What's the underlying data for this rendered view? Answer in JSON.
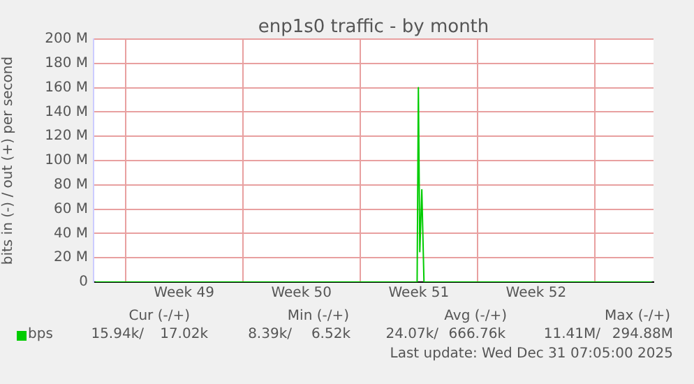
{
  "chart_data": {
    "type": "line",
    "title": "enp1s0 traffic - by month",
    "ylabel": "bits in (-) / out (+) per second",
    "xlim": [
      "2025-11-29T02:24",
      "2026-01-01T12:00"
    ],
    "xticks": [
      {
        "value": "2025-12-01",
        "label": null
      },
      {
        "value": "2025-12-04T12:00",
        "label": "Week 49"
      },
      {
        "value": "2025-12-08",
        "label": null
      },
      {
        "value": "2025-12-11T12:00",
        "label": "Week 50"
      },
      {
        "value": "2025-12-15",
        "label": null
      },
      {
        "value": "2025-12-18T12:00",
        "label": "Week 51"
      },
      {
        "value": "2025-12-22",
        "label": null
      },
      {
        "value": "2025-12-25T12:00",
        "label": "Week 52"
      },
      {
        "value": "2025-12-29",
        "label": null
      }
    ],
    "ylim": [
      0,
      200
    ],
    "yticks": [
      {
        "value": 0,
        "label": "0"
      },
      {
        "value": 20,
        "label": "20 M"
      },
      {
        "value": 40,
        "label": "40 M"
      },
      {
        "value": 60,
        "label": "60 M"
      },
      {
        "value": 80,
        "label": "80 M"
      },
      {
        "value": 100,
        "label": "100 M"
      },
      {
        "value": 120,
        "label": "120 M"
      },
      {
        "value": 140,
        "label": "140 M"
      },
      {
        "value": 160,
        "label": "160 M"
      },
      {
        "value": 180,
        "label": "180 M"
      },
      {
        "value": 200,
        "label": "200 M"
      }
    ],
    "grid": true,
    "legend": "bottom left",
    "series": [
      {
        "name": "bps",
        "color": "#00cc00",
        "x": [
          "2025-11-29T04:48",
          "2025-12-18T09:36",
          "2025-12-18T11:24",
          "2025-12-18T13:26",
          "2025-12-18T16:19",
          "2025-12-18T19:26",
          "2026-01-01T09:36"
        ],
        "values": [
          0,
          0,
          160,
          25,
          76,
          0,
          0
        ]
      }
    ],
    "annotations": [
      "Cur (-/+)",
      "Min (-/+)",
      "Avg (-/+)",
      "Max (-/+)",
      "15.94k/",
      "17.02k",
      "8.39k/",
      "6.52k",
      "24.07k/",
      "666.76k",
      "11.41M/",
      "294.88M",
      "Last update: Wed Dec 31 07:05:00 2025"
    ]
  }
}
